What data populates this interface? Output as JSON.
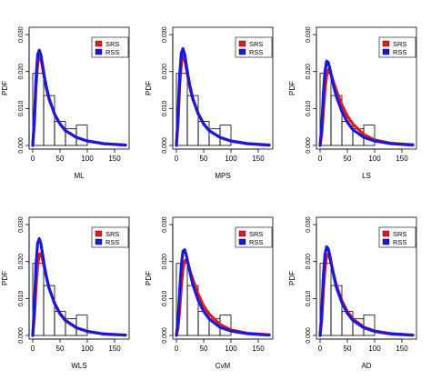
{
  "chart_data": [
    {
      "type": "histogram+line",
      "xlabel": "ML",
      "ylabel": "PDF",
      "xlim": [
        0,
        170
      ],
      "ylim": [
        0,
        0.031
      ],
      "x_ticks": [
        {
          "value": 0,
          "label": "0"
        },
        {
          "value": 50,
          "label": "50"
        },
        {
          "value": 100,
          "label": "100"
        },
        {
          "value": 150,
          "label": "150"
        }
      ],
      "y_ticks": [
        {
          "value": 0,
          "label": "0.000"
        },
        {
          "value": 0.01,
          "label": "0.010"
        },
        {
          "value": 0.02,
          "label": "0.020"
        },
        {
          "value": 0.03,
          "label": "0.030"
        }
      ],
      "legend_position": "top-right",
      "histogram": [
        {
          "x0": 0,
          "x1": 20,
          "density": 0.0195
        },
        {
          "x0": 20,
          "x1": 40,
          "density": 0.0135
        },
        {
          "x0": 40,
          "x1": 60,
          "density": 0.0065
        },
        {
          "x0": 60,
          "x1": 80,
          "density": 0.0045
        },
        {
          "x0": 80,
          "x1": 100,
          "density": 0.0055
        }
      ],
      "series": [
        {
          "name": "SRS",
          "color": "#e41a1c",
          "x": [
            0,
            3,
            6,
            9,
            12,
            15,
            18,
            21,
            25,
            30,
            40,
            50,
            60,
            80,
            100,
            130,
            170
          ],
          "y": [
            0.0,
            0.006,
            0.016,
            0.022,
            0.0245,
            0.0235,
            0.021,
            0.0185,
            0.0155,
            0.0125,
            0.0085,
            0.0058,
            0.004,
            0.0022,
            0.0012,
            0.0005,
            0.0001
          ]
        },
        {
          "name": "RSS",
          "color": "#1a1ad6",
          "x": [
            0,
            3,
            6,
            9,
            12,
            15,
            18,
            21,
            25,
            30,
            40,
            50,
            60,
            80,
            100,
            130,
            170
          ],
          "y": [
            0.0,
            0.007,
            0.018,
            0.0245,
            0.0258,
            0.0245,
            0.0218,
            0.019,
            0.0158,
            0.0127,
            0.0085,
            0.0058,
            0.004,
            0.0022,
            0.0012,
            0.0005,
            0.0001
          ]
        }
      ]
    },
    {
      "type": "histogram+line",
      "xlabel": "MPS",
      "ylabel": "PDF",
      "xlim": [
        0,
        170
      ],
      "ylim": [
        0,
        0.031
      ],
      "x_ticks": [
        {
          "value": 0,
          "label": "0"
        },
        {
          "value": 50,
          "label": "50"
        },
        {
          "value": 100,
          "label": "100"
        },
        {
          "value": 150,
          "label": "150"
        }
      ],
      "y_ticks": [
        {
          "value": 0,
          "label": "0.000"
        },
        {
          "value": 0.01,
          "label": "0.010"
        },
        {
          "value": 0.02,
          "label": "0.020"
        },
        {
          "value": 0.03,
          "label": "0.030"
        }
      ],
      "legend_position": "top-right",
      "histogram": [
        {
          "x0": 0,
          "x1": 20,
          "density": 0.0195
        },
        {
          "x0": 20,
          "x1": 40,
          "density": 0.0135
        },
        {
          "x0": 40,
          "x1": 60,
          "density": 0.0065
        },
        {
          "x0": 60,
          "x1": 80,
          "density": 0.0045
        },
        {
          "x0": 80,
          "x1": 100,
          "density": 0.0055
        }
      ],
      "series": [
        {
          "name": "SRS",
          "color": "#e41a1c",
          "x": [
            0,
            3,
            6,
            9,
            12,
            15,
            18,
            21,
            25,
            30,
            40,
            50,
            60,
            80,
            100,
            130,
            170
          ],
          "y": [
            0.0,
            0.006,
            0.016,
            0.022,
            0.0245,
            0.0235,
            0.021,
            0.0185,
            0.0155,
            0.0125,
            0.0085,
            0.0058,
            0.004,
            0.0022,
            0.0012,
            0.0005,
            0.0001
          ]
        },
        {
          "name": "RSS",
          "color": "#1a1ad6",
          "x": [
            0,
            3,
            6,
            9,
            12,
            15,
            18,
            21,
            25,
            30,
            40,
            50,
            60,
            80,
            100,
            130,
            170
          ],
          "y": [
            0.0,
            0.008,
            0.019,
            0.025,
            0.0262,
            0.0248,
            0.022,
            0.0192,
            0.016,
            0.0128,
            0.0086,
            0.0058,
            0.004,
            0.0022,
            0.0012,
            0.0005,
            0.0001
          ]
        }
      ]
    },
    {
      "type": "histogram+line",
      "xlabel": "LS",
      "ylabel": "PDF",
      "xlim": [
        0,
        170
      ],
      "ylim": [
        0,
        0.031
      ],
      "x_ticks": [
        {
          "value": 0,
          "label": "0"
        },
        {
          "value": 50,
          "label": "50"
        },
        {
          "value": 100,
          "label": "100"
        },
        {
          "value": 150,
          "label": "150"
        }
      ],
      "y_ticks": [
        {
          "value": 0,
          "label": "0.000"
        },
        {
          "value": 0.01,
          "label": "0.010"
        },
        {
          "value": 0.02,
          "label": "0.020"
        },
        {
          "value": 0.03,
          "label": "0.030"
        }
      ],
      "legend_position": "top-right",
      "histogram": [
        {
          "x0": 0,
          "x1": 20,
          "density": 0.0195
        },
        {
          "x0": 20,
          "x1": 40,
          "density": 0.0135
        },
        {
          "x0": 40,
          "x1": 60,
          "density": 0.0065
        },
        {
          "x0": 60,
          "x1": 80,
          "density": 0.0045
        },
        {
          "x0": 80,
          "x1": 100,
          "density": 0.0055
        }
      ],
      "series": [
        {
          "name": "SRS",
          "color": "#e41a1c",
          "x": [
            0,
            3,
            6,
            9,
            12,
            15,
            18,
            21,
            25,
            30,
            40,
            50,
            60,
            80,
            100,
            130,
            170
          ],
          "y": [
            0.0,
            0.003,
            0.009,
            0.015,
            0.019,
            0.0205,
            0.02,
            0.0188,
            0.017,
            0.0148,
            0.011,
            0.008,
            0.0058,
            0.003,
            0.0015,
            0.0006,
            0.0002
          ]
        },
        {
          "name": "RSS",
          "color": "#1a1ad6",
          "x": [
            0,
            3,
            6,
            9,
            12,
            15,
            18,
            21,
            25,
            30,
            40,
            50,
            60,
            80,
            100,
            130,
            170
          ],
          "y": [
            0.0,
            0.005,
            0.014,
            0.02,
            0.0228,
            0.0225,
            0.0208,
            0.0188,
            0.016,
            0.0132,
            0.0092,
            0.0063,
            0.0043,
            0.0022,
            0.0012,
            0.0005,
            0.0001
          ]
        }
      ]
    },
    {
      "type": "histogram+line",
      "xlabel": "WLS",
      "ylabel": "PDF",
      "xlim": [
        0,
        170
      ],
      "ylim": [
        0,
        0.031
      ],
      "x_ticks": [
        {
          "value": 0,
          "label": "0"
        },
        {
          "value": 50,
          "label": "50"
        },
        {
          "value": 100,
          "label": "100"
        },
        {
          "value": 150,
          "label": "150"
        }
      ],
      "y_ticks": [
        {
          "value": 0,
          "label": "0.000"
        },
        {
          "value": 0.01,
          "label": "0.010"
        },
        {
          "value": 0.02,
          "label": "0.020"
        },
        {
          "value": 0.03,
          "label": "0.030"
        }
      ],
      "legend_position": "top-right",
      "histogram": [
        {
          "x0": 0,
          "x1": 20,
          "density": 0.0195
        },
        {
          "x0": 20,
          "x1": 40,
          "density": 0.0135
        },
        {
          "x0": 40,
          "x1": 60,
          "density": 0.0065
        },
        {
          "x0": 60,
          "x1": 80,
          "density": 0.0045
        },
        {
          "x0": 80,
          "x1": 100,
          "density": 0.0055
        }
      ],
      "series": [
        {
          "name": "SRS",
          "color": "#e41a1c",
          "x": [
            0,
            3,
            6,
            9,
            12,
            15,
            18,
            21,
            25,
            30,
            40,
            50,
            60,
            80,
            100,
            130,
            170
          ],
          "y": [
            0.0,
            0.005,
            0.013,
            0.019,
            0.022,
            0.0222,
            0.0205,
            0.0185,
            0.0158,
            0.0128,
            0.0088,
            0.006,
            0.0041,
            0.0021,
            0.0011,
            0.0004,
            0.0001
          ]
        },
        {
          "name": "RSS",
          "color": "#1a1ad6",
          "x": [
            0,
            3,
            6,
            9,
            12,
            15,
            18,
            21,
            25,
            30,
            40,
            50,
            60,
            80,
            100,
            130,
            170
          ],
          "y": [
            0.0,
            0.008,
            0.019,
            0.025,
            0.0262,
            0.0248,
            0.022,
            0.0192,
            0.016,
            0.0128,
            0.0086,
            0.0058,
            0.004,
            0.0021,
            0.0011,
            0.0004,
            0.0001
          ]
        }
      ]
    },
    {
      "type": "histogram+line",
      "xlabel": "CvM",
      "ylabel": "PDF",
      "xlim": [
        0,
        170
      ],
      "ylim": [
        0,
        0.031
      ],
      "x_ticks": [
        {
          "value": 0,
          "label": "0"
        },
        {
          "value": 50,
          "label": "50"
        },
        {
          "value": 100,
          "label": "100"
        },
        {
          "value": 150,
          "label": "150"
        }
      ],
      "y_ticks": [
        {
          "value": 0,
          "label": "0.000"
        },
        {
          "value": 0.01,
          "label": "0.010"
        },
        {
          "value": 0.02,
          "label": "0.020"
        },
        {
          "value": 0.03,
          "label": "0.030"
        }
      ],
      "legend_position": "top-right",
      "histogram": [
        {
          "x0": 0,
          "x1": 20,
          "density": 0.0195
        },
        {
          "x0": 20,
          "x1": 40,
          "density": 0.0135
        },
        {
          "x0": 40,
          "x1": 60,
          "density": 0.0065
        },
        {
          "x0": 60,
          "x1": 80,
          "density": 0.0045
        },
        {
          "x0": 80,
          "x1": 100,
          "density": 0.0055
        }
      ],
      "series": [
        {
          "name": "SRS",
          "color": "#e41a1c",
          "x": [
            0,
            3,
            6,
            9,
            12,
            15,
            18,
            21,
            25,
            30,
            40,
            50,
            60,
            80,
            100,
            130,
            170
          ],
          "y": [
            0.0,
            0.002,
            0.007,
            0.013,
            0.018,
            0.0202,
            0.0205,
            0.0195,
            0.0175,
            0.0152,
            0.0112,
            0.008,
            0.0058,
            0.003,
            0.0015,
            0.0006,
            0.0002
          ]
        },
        {
          "name": "RSS",
          "color": "#1a1ad6",
          "x": [
            0,
            3,
            6,
            9,
            12,
            15,
            18,
            21,
            25,
            30,
            40,
            50,
            60,
            80,
            100,
            130,
            170
          ],
          "y": [
            0.0,
            0.004,
            0.012,
            0.019,
            0.0228,
            0.0232,
            0.0218,
            0.0198,
            0.017,
            0.0138,
            0.0095,
            0.0065,
            0.0045,
            0.0022,
            0.0012,
            0.0005,
            0.0001
          ]
        }
      ]
    },
    {
      "type": "histogram+line",
      "xlabel": "AD",
      "ylabel": "PDF",
      "xlim": [
        0,
        170
      ],
      "ylim": [
        0,
        0.031
      ],
      "x_ticks": [
        {
          "value": 0,
          "label": "0"
        },
        {
          "value": 50,
          "label": "50"
        },
        {
          "value": 100,
          "label": "100"
        },
        {
          "value": 150,
          "label": "150"
        }
      ],
      "y_ticks": [
        {
          "value": 0,
          "label": "0.000"
        },
        {
          "value": 0.01,
          "label": "0.010"
        },
        {
          "value": 0.02,
          "label": "0.020"
        },
        {
          "value": 0.03,
          "label": "0.030"
        }
      ],
      "legend_position": "top-right",
      "histogram": [
        {
          "x0": 0,
          "x1": 20,
          "density": 0.0195
        },
        {
          "x0": 20,
          "x1": 40,
          "density": 0.0135
        },
        {
          "x0": 40,
          "x1": 60,
          "density": 0.0065
        },
        {
          "x0": 60,
          "x1": 80,
          "density": 0.0045
        },
        {
          "x0": 80,
          "x1": 100,
          "density": 0.0055
        }
      ],
      "series": [
        {
          "name": "SRS",
          "color": "#e41a1c",
          "x": [
            0,
            3,
            6,
            9,
            12,
            15,
            18,
            21,
            25,
            30,
            40,
            50,
            60,
            80,
            100,
            130,
            170
          ],
          "y": [
            0.0,
            0.004,
            0.012,
            0.018,
            0.0215,
            0.022,
            0.0208,
            0.019,
            0.0165,
            0.0135,
            0.0094,
            0.0065,
            0.0045,
            0.0023,
            0.0012,
            0.0005,
            0.0001
          ]
        },
        {
          "name": "RSS",
          "color": "#1a1ad6",
          "x": [
            0,
            3,
            6,
            9,
            12,
            15,
            18,
            21,
            25,
            30,
            40,
            50,
            60,
            80,
            100,
            130,
            170
          ],
          "y": [
            0.0,
            0.006,
            0.016,
            0.022,
            0.024,
            0.0235,
            0.0215,
            0.0192,
            0.0162,
            0.013,
            0.0089,
            0.006,
            0.0041,
            0.0021,
            0.0011,
            0.0004,
            0.0001
          ]
        }
      ]
    }
  ]
}
